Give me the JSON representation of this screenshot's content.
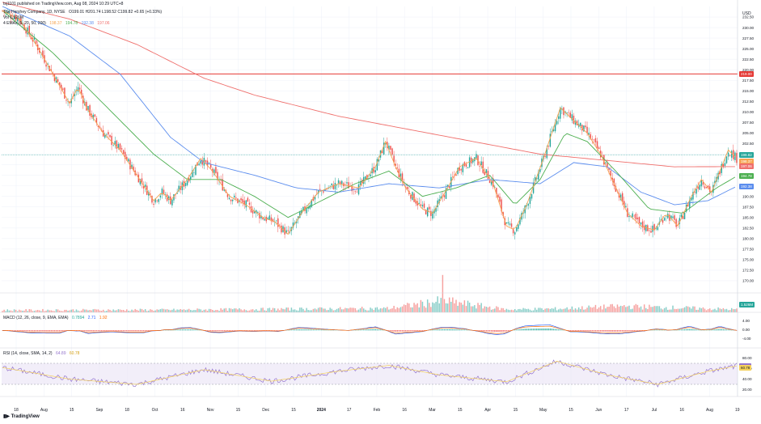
{
  "header": {
    "published": "tsj1101 published on TradingView.com, Aug 08, 2024 10:29 UTC+8",
    "symbol": "The Hershey Company, 1D, NYSE",
    "ohlc": "O199.01 H201.74 L198.52 C199.82 +0.65 (+0.33%)",
    "vol": "Vol 1.526M",
    "emas_label": "4 EMAs (5, 20, 50, 200)",
    "emas_values": [
      "198.37",
      "194.78",
      "192.38",
      "197.06"
    ]
  },
  "macd_label": "MACD (12, 26, close, 9, EMA, EMA)",
  "macd_values": [
    "0.7894",
    "2.71",
    "1.92"
  ],
  "rsi_label": "RSI (14, close, SMA, 14, 2)",
  "rsi_values": [
    "64.89",
    "60.78"
  ],
  "logo": "TradingView",
  "currency": "USD",
  "colors": {
    "up": "#26a69a",
    "down": "#ef5350",
    "ema5": "#f7a350",
    "ema20": "#4caf50",
    "ema50": "#5b8dee",
    "ema200": "#ef6f6c",
    "hline": "#e53935",
    "rsi": "#9575cd",
    "rsi_ma": "#f5d15b",
    "macd": "#2962ff",
    "signal": "#ff6d00"
  },
  "chart_data": {
    "type": "line",
    "title": "The Hershey Company, 1D, NYSE",
    "x_ticks": [
      "18",
      "Aug",
      "15",
      "Sep",
      "18",
      "Oct",
      "16",
      "Nov",
      "15",
      "Dec",
      "15",
      "2024",
      "17",
      "Feb",
      "16",
      "Mar",
      "15",
      "Apr",
      "15",
      "May",
      "15",
      "Jun",
      "17",
      "Jul",
      "16",
      "Aug",
      "19"
    ],
    "y_ticks": [
      "232.50",
      "230.00",
      "227.50",
      "225.00",
      "222.50",
      "220.00",
      "217.50",
      "215.00",
      "212.50",
      "210.00",
      "207.50",
      "205.00",
      "202.50",
      "200.00",
      "197.50",
      "195.00",
      "192.50",
      "190.00",
      "187.50",
      "185.00",
      "182.50",
      "180.00",
      "177.50",
      "175.00",
      "172.50",
      "170.00"
    ],
    "ylim": [
      167.5,
      235
    ],
    "horizontal_line": 219.0,
    "price_labels": [
      {
        "text": "219.00",
        "value": 219.0,
        "color": "#e53935"
      },
      {
        "text": "199.82",
        "value": 199.82,
        "color": "#26a69a"
      },
      {
        "text": "198.37",
        "value": 198.37,
        "color": "#f7a350"
      },
      {
        "text": "197.06",
        "value": 197.06,
        "color": "#ef6f6c"
      },
      {
        "text": "194.78",
        "value": 194.78,
        "color": "#4caf50"
      },
      {
        "text": "192.38",
        "value": 192.38,
        "color": "#5b8dee"
      }
    ],
    "close_anchors": [
      [
        0,
        234
      ],
      [
        10,
        232
      ],
      [
        20,
        226
      ],
      [
        30,
        219
      ],
      [
        40,
        212
      ],
      [
        45,
        216
      ],
      [
        50,
        211
      ],
      [
        60,
        205
      ],
      [
        70,
        201
      ],
      [
        80,
        195
      ],
      [
        90,
        189
      ],
      [
        95,
        191
      ],
      [
        100,
        189
      ],
      [
        110,
        194
      ],
      [
        118,
        199
      ],
      [
        125,
        196
      ],
      [
        135,
        190
      ],
      [
        145,
        188
      ],
      [
        155,
        185
      ],
      [
        162,
        184
      ],
      [
        170,
        181
      ],
      [
        178,
        186
      ],
      [
        188,
        191
      ],
      [
        200,
        193
      ],
      [
        212,
        192
      ],
      [
        222,
        197
      ],
      [
        228,
        203
      ],
      [
        234,
        197
      ],
      [
        240,
        192
      ],
      [
        250,
        187
      ],
      [
        256,
        186
      ],
      [
        262,
        190
      ],
      [
        272,
        197
      ],
      [
        282,
        199
      ],
      [
        292,
        193
      ],
      [
        300,
        183
      ],
      [
        305,
        182
      ],
      [
        312,
        188
      ],
      [
        322,
        199
      ],
      [
        332,
        211
      ],
      [
        340,
        208
      ],
      [
        348,
        205
      ],
      [
        356,
        200
      ],
      [
        364,
        193
      ],
      [
        372,
        186
      ],
      [
        380,
        183
      ],
      [
        388,
        182
      ],
      [
        395,
        186
      ],
      [
        402,
        183
      ],
      [
        410,
        190
      ],
      [
        416,
        194
      ],
      [
        422,
        191
      ],
      [
        428,
        197
      ],
      [
        432,
        201
      ],
      [
        437,
        199
      ]
    ],
    "ema200_anchors": [
      [
        0,
        236
      ],
      [
        40,
        232
      ],
      [
        80,
        226
      ],
      [
        120,
        218
      ],
      [
        150,
        214
      ],
      [
        200,
        209
      ],
      [
        240,
        206
      ],
      [
        280,
        203
      ],
      [
        320,
        200
      ],
      [
        360,
        198.5
      ],
      [
        400,
        197
      ],
      [
        437,
        197.06
      ]
    ],
    "ema50_anchors": [
      [
        0,
        235
      ],
      [
        40,
        228
      ],
      [
        70,
        219
      ],
      [
        100,
        204
      ],
      [
        120,
        198
      ],
      [
        150,
        195
      ],
      [
        175,
        192
      ],
      [
        200,
        191
      ],
      [
        230,
        193
      ],
      [
        260,
        192
      ],
      [
        290,
        194
      ],
      [
        320,
        193
      ],
      [
        340,
        198
      ],
      [
        360,
        197
      ],
      [
        380,
        191
      ],
      [
        400,
        188
      ],
      [
        420,
        189
      ],
      [
        437,
        192.38
      ]
    ],
    "ema20_anchors": [
      [
        0,
        234
      ],
      [
        30,
        224
      ],
      [
        60,
        212
      ],
      [
        90,
        200
      ],
      [
        110,
        194
      ],
      [
        130,
        194
      ],
      [
        150,
        190
      ],
      [
        170,
        185
      ],
      [
        190,
        189
      ],
      [
        210,
        193
      ],
      [
        230,
        196
      ],
      [
        250,
        190
      ],
      [
        270,
        192
      ],
      [
        290,
        195
      ],
      [
        305,
        188
      ],
      [
        320,
        194
      ],
      [
        335,
        205
      ],
      [
        348,
        203
      ],
      [
        365,
        196
      ],
      [
        385,
        187
      ],
      [
        405,
        186
      ],
      [
        425,
        192
      ],
      [
        437,
        194.78
      ]
    ],
    "volume_anchors": [
      [
        0,
        0.3
      ],
      [
        100,
        0.35
      ],
      [
        230,
        0.55
      ],
      [
        262,
        1.6
      ],
      [
        300,
        0.4
      ],
      [
        330,
        0.5
      ],
      [
        370,
        0.85
      ],
      [
        437,
        0.4
      ]
    ],
    "volume_scale_label": "1.526M",
    "macd_ticks": [
      "4.00",
      "0.00",
      "-4.00"
    ],
    "rsi_ticks": [
      "80.00",
      "60.00",
      "40.00",
      "20.00"
    ],
    "rsi_band": [
      70,
      30
    ],
    "rsi_anchors": [
      [
        0,
        62
      ],
      [
        40,
        40
      ],
      [
        80,
        30
      ],
      [
        120,
        58
      ],
      [
        160,
        36
      ],
      [
        200,
        55
      ],
      [
        230,
        66
      ],
      [
        260,
        48
      ],
      [
        300,
        35
      ],
      [
        330,
        74
      ],
      [
        360,
        48
      ],
      [
        390,
        30
      ],
      [
        420,
        55
      ],
      [
        437,
        64.89
      ]
    ]
  }
}
